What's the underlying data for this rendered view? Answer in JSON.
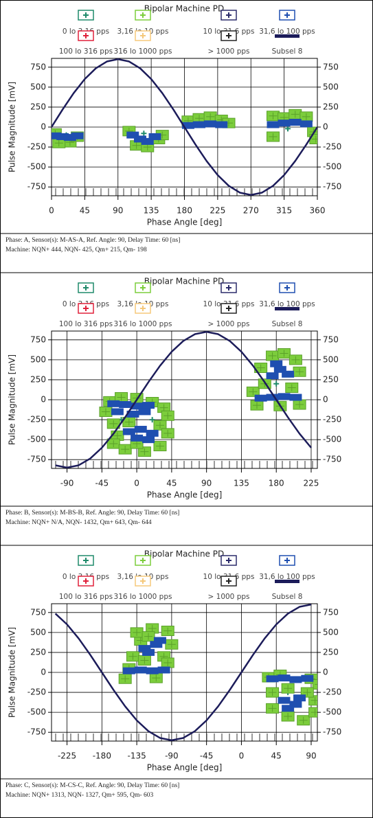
{
  "panels": [
    {
      "chart_data": {
        "type": "scatter",
        "title": "Bipolar Machine PD",
        "x_label": "Phase Angle [deg]",
        "y_label": "Pulse Magnitude [mV]",
        "xlim": [
          0,
          360
        ],
        "ylim": [
          -860,
          860
        ],
        "xticks": [
          0,
          45,
          90,
          135,
          180,
          225,
          270,
          315,
          360
        ],
        "yticks": [
          -750,
          -500,
          -250,
          0,
          250,
          500,
          750
        ],
        "grid": true,
        "series": [
          {
            "name": "0 lo 3,16 pps",
            "color": "#1f8a6a",
            "x": [
              20,
              125,
              320
            ],
            "values": [
              -100,
              -80,
              -20
            ]
          },
          {
            "name": "3,16 lo 10 pps",
            "color": "#7ccd3c",
            "x": [
              5,
              15,
              25,
              35,
              10,
              105,
              115,
              130,
              145,
              150,
              185,
              200,
              215,
              230,
              240,
              300,
              315,
              330,
              345,
              355,
              358,
              300
            ],
            "values": [
              -80,
              -150,
              -190,
              -120,
              -200,
              -50,
              -230,
              -250,
              -150,
              -100,
              80,
              110,
              130,
              90,
              50,
              140,
              120,
              160,
              130,
              -60,
              -150,
              -120
            ]
          },
          {
            "name": "10 lo 31,6 pps",
            "color": "#2a2a6a",
            "x": [],
            "values": []
          },
          {
            "name": "31,6 lo 100 pps",
            "color": "#1f4fb0",
            "x": [
              5,
              15,
              25,
              35,
              110,
              120,
              130,
              140,
              185,
              200,
              215,
              230,
              300,
              315,
              330,
              345
            ],
            "values": [
              -110,
              -120,
              -130,
              -110,
              -100,
              -150,
              -180,
              -120,
              20,
              30,
              40,
              30,
              30,
              50,
              60,
              40
            ]
          },
          {
            "name": "100 lo 316 pps",
            "color": "#e0203a",
            "x": [],
            "values": []
          },
          {
            "name": "316 lo 1000 pps",
            "color": "#f5c87a",
            "x": [],
            "values": []
          },
          {
            "name": "> 1000 pps",
            "color": "#222222",
            "x": [],
            "values": []
          },
          {
            "name": "Subsel 8",
            "color": "#1c1c5a",
            "type": "line",
            "x": [
              0,
              15,
              30,
              45,
              60,
              75,
              90,
              105,
              120,
              135,
              150,
              165,
              180,
              195,
              210,
              225,
              240,
              255,
              270,
              285,
              300,
              315,
              330,
              345,
              360
            ],
            "values": [
              0,
              220,
              425,
              601,
              736,
              821,
              850,
              821,
              736,
              601,
              425,
              220,
              0,
              -220,
              -425,
              -601,
              -736,
              -821,
              -850,
              -821,
              -736,
              -601,
              -425,
              -220,
              0
            ]
          }
        ]
      },
      "info": {
        "line1": "Phase: A,   Sensor(s): M-AS-A,   Ref. Angle: 90,   Delay Time: 60 [ns]",
        "line2": "Machine:  NQN+ 444, NQN- 425, Qm+ 215, Qm- 198"
      }
    },
    {
      "chart_data": {
        "type": "scatter",
        "title": "Bipolar Machine PD",
        "x_label": "Phase Angle [deg]",
        "y_label": "Pulse Magnitude [mV]",
        "xlim": [
          -110,
          233
        ],
        "ylim": [
          -860,
          860
        ],
        "xticks": [
          -90,
          -45,
          0,
          45,
          90,
          135,
          180,
          225
        ],
        "yticks": [
          -750,
          -500,
          -250,
          0,
          250,
          500,
          750
        ],
        "grid": true,
        "series": [
          {
            "name": "0 lo 3,16 pps",
            "color": "#1f8a6a",
            "x": [
              -20,
              20,
              180
            ],
            "values": [
              -250,
              -250,
              200
            ]
          },
          {
            "name": "3,16 lo 10 pps",
            "color": "#7ccd3c",
            "x": [
              -35,
              -20,
              0,
              20,
              35,
              -40,
              40,
              -30,
              -10,
              30,
              -25,
              -30,
              -15,
              10,
              30,
              40,
              0,
              150,
              165,
              160,
              175,
              190,
              205,
              210,
              200,
              185,
              210,
              155
            ],
            "values": [
              -20,
              30,
              20,
              -30,
              -100,
              -150,
              -200,
              -300,
              -280,
              -320,
              -450,
              -550,
              -620,
              -650,
              -580,
              -420,
              -550,
              100,
              200,
              400,
              550,
              580,
              500,
              350,
              150,
              -80,
              -60,
              -70
            ]
          },
          {
            "name": "10 lo 31,6 pps",
            "color": "#2a2a6a",
            "x": [],
            "values": []
          },
          {
            "name": "31,6 lo 100 pps",
            "color": "#1f4fb0",
            "x": [
              -30,
              -15,
              0,
              15,
              -25,
              -5,
              10,
              -10,
              5,
              20,
              0,
              15,
              160,
              175,
              190,
              205,
              175,
              185,
              195,
              180
            ],
            "values": [
              -50,
              -60,
              -80,
              -70,
              -150,
              -180,
              -150,
              -400,
              -370,
              -420,
              -480,
              -500,
              20,
              30,
              40,
              30,
              300,
              380,
              320,
              450
            ]
          },
          {
            "name": "100 lo 316 pps",
            "color": "#e0203a",
            "x": [],
            "values": []
          },
          {
            "name": "316 lo 1000 pps",
            "color": "#f5c87a",
            "x": [],
            "values": []
          },
          {
            "name": "> 1000 pps",
            "color": "#222222",
            "x": [],
            "values": []
          },
          {
            "name": "Subsel 8",
            "color": "#1c1c5a",
            "type": "line",
            "x": [
              -105,
              -90,
              -75,
              -60,
              -45,
              -30,
              -15,
              0,
              15,
              30,
              45,
              60,
              75,
              90,
              105,
              120,
              135,
              150,
              165,
              180,
              195,
              210,
              225
            ],
            "values": [
              -821,
              -850,
              -821,
              -736,
              -601,
              -425,
              -220,
              0,
              220,
              425,
              601,
              736,
              821,
              850,
              821,
              736,
              601,
              425,
              220,
              0,
              -220,
              -425,
              -601
            ]
          }
        ]
      },
      "info": {
        "line1": "Phase: B,   Sensor(s): M-BS-B,   Ref. Angle: 90,   Delay Time: 60 [ns]",
        "line2": "Machine:  NQN+ N/A, NQN- 1432, Qm+ 643, Qm- 644"
      }
    },
    {
      "chart_data": {
        "type": "scatter",
        "title": "Bipolar Machine PD",
        "x_label": "Phase Angle [deg]",
        "y_label": "Pulse Magnitude [mV]",
        "xlim": [
          -245,
          98
        ],
        "ylim": [
          -860,
          860
        ],
        "xticks": [
          -225,
          -180,
          -135,
          -90,
          -45,
          0,
          45,
          90
        ],
        "yticks": [
          -750,
          -500,
          -250,
          0,
          250,
          500,
          750
        ],
        "grid": true,
        "series": [
          {
            "name": "0 lo 3,16 pps",
            "color": "#1f8a6a",
            "x": [
              -130,
              60
            ],
            "values": [
              150,
              -250
            ]
          },
          {
            "name": "3,16 lo 10 pps",
            "color": "#7ccd3c",
            "x": [
              -150,
              -145,
              -140,
              -130,
              -135,
              -115,
              -95,
              -90,
              -100,
              -125,
              -95,
              -110,
              -120,
              35,
              50,
              90,
              100,
              40,
              95,
              40,
              60,
              80,
              95,
              60,
              85
            ],
            "values": [
              -80,
              50,
              200,
              400,
              500,
              550,
              520,
              350,
              200,
              150,
              120,
              -70,
              450,
              -60,
              -30,
              -80,
              -150,
              -250,
              -350,
              -450,
              -550,
              -600,
              -500,
              -200,
              -250
            ]
          },
          {
            "name": "10 lo 31,6 pps",
            "color": "#2a2a6a",
            "x": [],
            "values": []
          },
          {
            "name": "31,6 lo 100 pps",
            "color": "#1f4fb0",
            "x": [
              -145,
              -130,
              -115,
              -100,
              -125,
              -110,
              -120,
              -105,
              40,
              55,
              70,
              85,
              55,
              70,
              60,
              75
            ],
            "values": [
              20,
              30,
              20,
              30,
              300,
              350,
              250,
              400,
              -80,
              -70,
              -90,
              -75,
              -350,
              -400,
              -450,
              -320
            ]
          },
          {
            "name": "100 lo 316 pps",
            "color": "#e0203a",
            "x": [],
            "values": []
          },
          {
            "name": "316 lo 1000 pps",
            "color": "#f5c87a",
            "x": [],
            "values": []
          },
          {
            "name": "> 1000 pps",
            "color": "#222222",
            "x": [],
            "values": []
          },
          {
            "name": "Subsel 8",
            "color": "#1c1c5a",
            "type": "line",
            "x": [
              -240,
              -225,
              -210,
              -195,
              -180,
              -165,
              -150,
              -135,
              -120,
              -105,
              -90,
              -75,
              -60,
              -45,
              -30,
              -15,
              0,
              15,
              30,
              45,
              60,
              75,
              90
            ],
            "values": [
              736,
              601,
              425,
              220,
              0,
              -220,
              -425,
              -601,
              -736,
              -821,
              -850,
              -821,
              -736,
              -601,
              -425,
              -220,
              0,
              220,
              425,
              601,
              736,
              821,
              850
            ]
          }
        ]
      },
      "info": {
        "line1": "Phase: C,   Sensor(s): M-CS-C,   Ref. Angle: 90,   Delay Time: 60 [ns]",
        "line2": "Machine:  NQN+ 1313, NQN- 1327, Qm+ 595, Qm- 603"
      }
    }
  ]
}
